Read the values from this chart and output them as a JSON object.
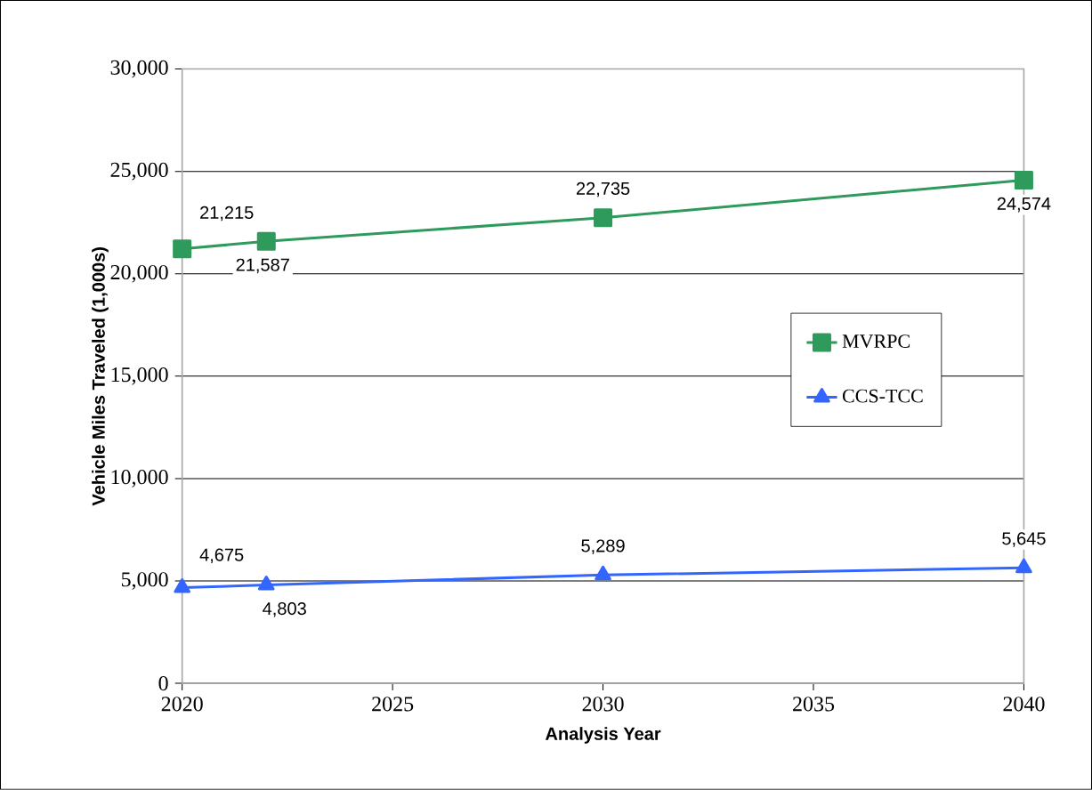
{
  "chart_data": {
    "type": "line",
    "xlabel": "Analysis Year",
    "ylabel": "Vehicle Miles Traveled (1,000s)",
    "x": [
      2020,
      2022,
      2030,
      2040
    ],
    "series": [
      {
        "name": "MVRPC",
        "color": "#2e9a5c",
        "marker": "square",
        "values": [
          21215,
          21587,
          22735,
          24574
        ],
        "value_labels": [
          "21,215",
          "21,587",
          "22,735",
          "24,574"
        ]
      },
      {
        "name": "CCS-TCC",
        "color": "#3366ff",
        "marker": "triangle",
        "values": [
          4675,
          4803,
          5289,
          5645
        ],
        "value_labels": [
          "4,675",
          "4,803",
          "5,289",
          "5,645"
        ]
      }
    ],
    "xlim": [
      2020,
      2040
    ],
    "xticks": [
      2020,
      2025,
      2030,
      2035,
      2040
    ],
    "ylim": [
      0,
      30000
    ],
    "yticks": [
      0,
      {
        "value": 5000,
        "label": "5,000"
      },
      {
        "value": 10000,
        "label": "10,000"
      },
      {
        "value": 15000,
        "label": "15,000"
      },
      {
        "value": 20000,
        "label": "20,000"
      },
      {
        "value": 25000,
        "label": "25,000"
      },
      {
        "value": 30000,
        "label": "30,000"
      }
    ],
    "grid": "y",
    "legend": "right",
    "line_style": "solid"
  }
}
